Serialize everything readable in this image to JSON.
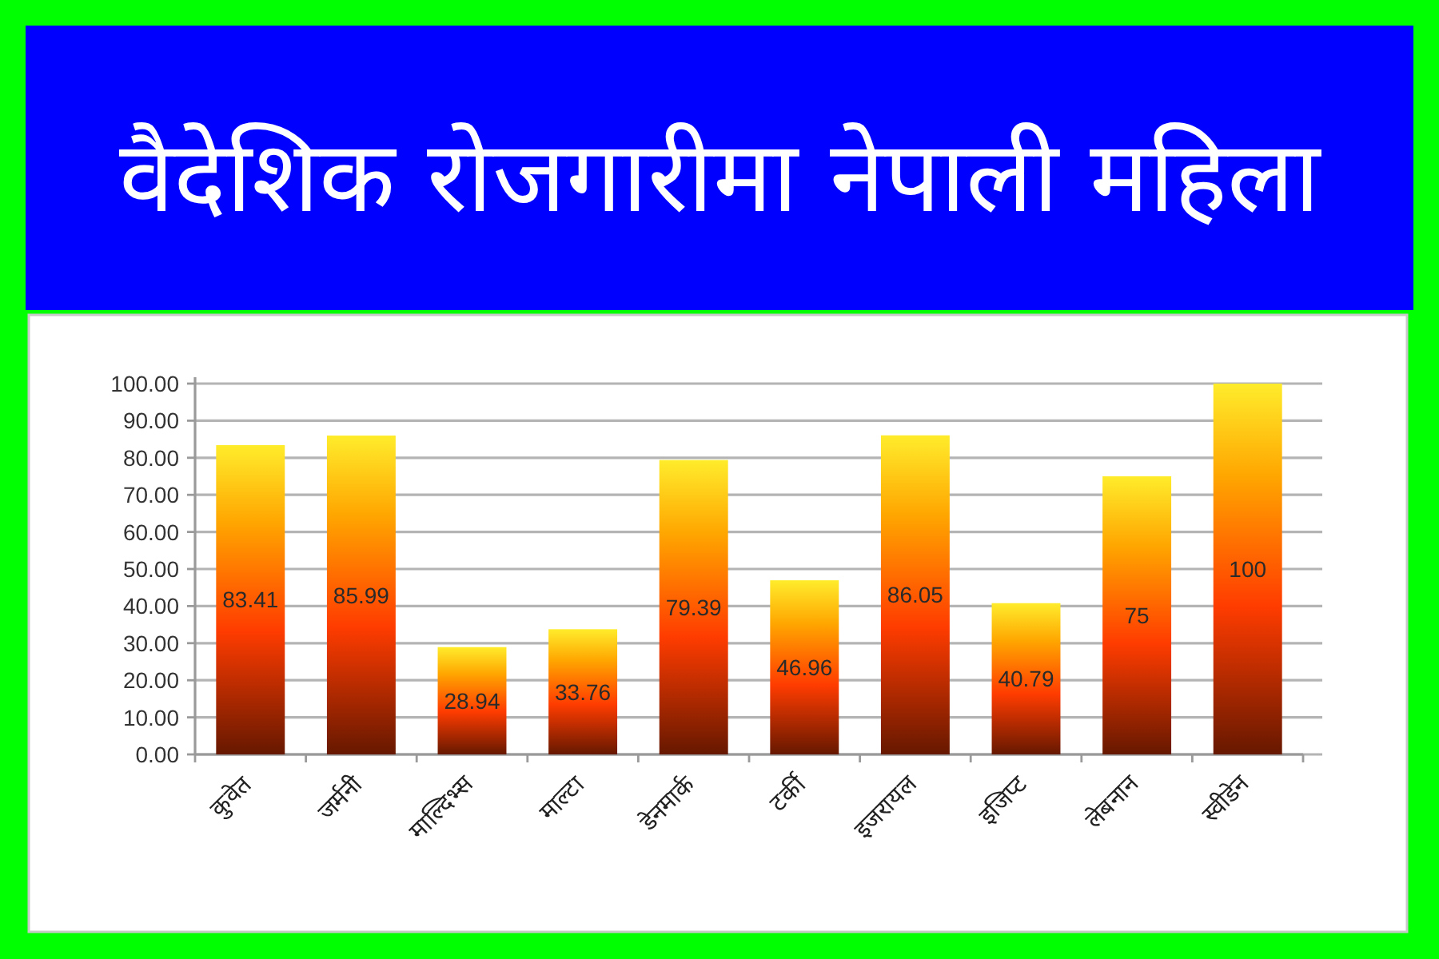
{
  "chart_data": {
    "type": "bar",
    "title": "वैदेशिक रोजगारीमा नेपाली महिला",
    "categories": [
      "कुवेत",
      "जर्मनी",
      "माल्दिभ्स",
      "माल्टा",
      "डेनमार्क",
      "टर्की",
      "इजरायल",
      "इजिप्ट",
      "लेबनान",
      "स्वीडेन"
    ],
    "values": [
      83.41,
      85.99,
      28.94,
      33.76,
      79.39,
      46.96,
      86.05,
      40.79,
      75,
      100
    ],
    "color": "#ff3c00",
    "ylim": [
      0,
      100
    ],
    "yticks": [
      {
        "value": 0,
        "label": "0.00"
      },
      {
        "value": 10,
        "label": "10.00"
      },
      {
        "value": 20,
        "label": "20.00"
      },
      {
        "value": 30,
        "label": "30.00"
      },
      {
        "value": 40,
        "label": "40.00"
      },
      {
        "value": 50,
        "label": "50.00"
      },
      {
        "value": 60,
        "label": "60.00"
      },
      {
        "value": 70,
        "label": "70.00"
      },
      {
        "value": 80,
        "label": "80.00"
      },
      {
        "value": 90,
        "label": "90.00"
      },
      {
        "value": 100,
        "label": "100.00"
      }
    ],
    "grid": "y",
    "data_labels": true
  }
}
